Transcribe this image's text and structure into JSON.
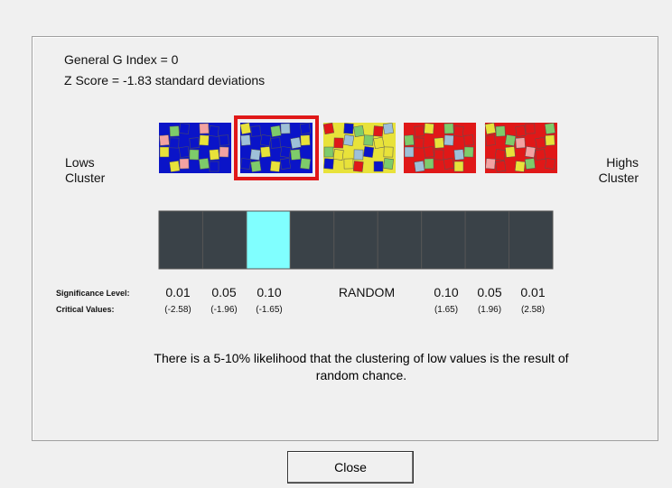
{
  "report": {
    "index_line": "General G Index = 0",
    "zscore_line": "Z Score = -1.83 standard deviations",
    "left_label": "Lows Cluster",
    "right_label": "Highs Cluster",
    "significance_heading": "Significance Level:",
    "critical_heading": "Critical Values:",
    "levels": [
      {
        "level": "0.01",
        "critical": "(-2.58)"
      },
      {
        "level": "0.05",
        "critical": "(-1.96)"
      },
      {
        "level": "0.10",
        "critical": "(-1.65)"
      },
      {
        "level": "RANDOM"
      },
      {
        "level": "0.10",
        "critical": "(1.65)"
      },
      {
        "level": "0.05",
        "critical": "(1.96)"
      },
      {
        "level": "0.01",
        "critical": "(2.58)"
      }
    ],
    "message": "There is a 5-10% likelihood that the clustering of low values is the result of random chance."
  },
  "buttons": {
    "close": "Close"
  }
}
